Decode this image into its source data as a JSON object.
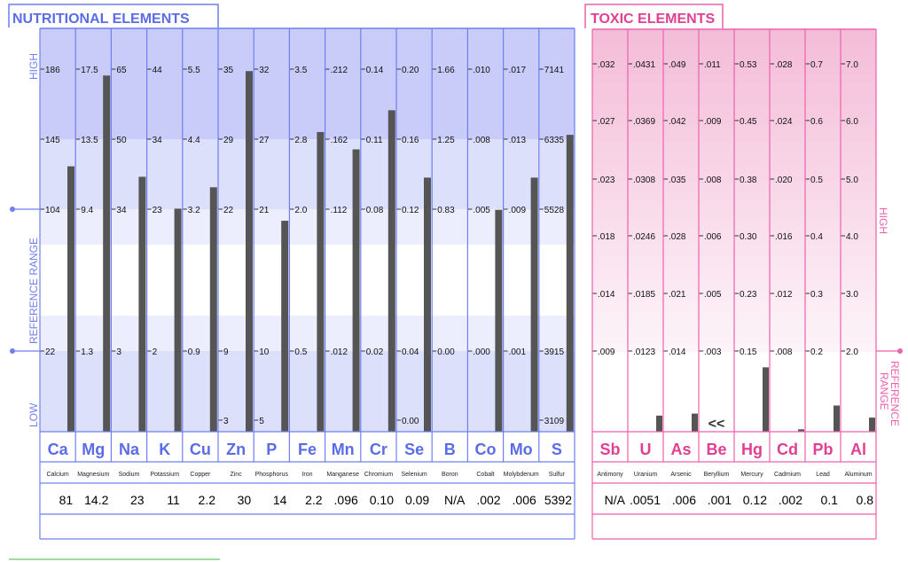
{
  "chart_data": [
    {
      "type": "bar",
      "title": "NUTRITIONAL ELEMENTS",
      "y_axis_labels": {
        "high": "HIGH",
        "reference": "REFERENCE   RANGE",
        "low": "LOW"
      },
      "grid": true,
      "columns": [
        {
          "symbol": "Ca",
          "name": "Calcium",
          "result": "81",
          "ticks": [
            "186",
            "145",
            "104",
            "22"
          ],
          "bottom_tick": "",
          "bar_level": 0.658
        },
        {
          "symbol": "Mg",
          "name": "Magnesium",
          "result": "14.2",
          "ticks": [
            "17.5",
            "13.5",
            "9.4",
            "1.3"
          ],
          "bottom_tick": "",
          "bar_level": 0.883
        },
        {
          "symbol": "Na",
          "name": "Sodium",
          "result": "23",
          "ticks": [
            "65",
            "50",
            "34",
            "3"
          ],
          "bottom_tick": "",
          "bar_level": 0.632
        },
        {
          "symbol": "K",
          "name": "Potassium",
          "result": "11",
          "ticks": [
            "44",
            "34",
            "23",
            "2"
          ],
          "bottom_tick": "",
          "bar_level": 0.553
        },
        {
          "symbol": "Cu",
          "name": "Copper",
          "result": "2.2",
          "ticks": [
            "5.5",
            "4.4",
            "3.2",
            "0.9"
          ],
          "bottom_tick": "",
          "bar_level": 0.606
        },
        {
          "symbol": "Zn",
          "name": "Zinc",
          "result": "30",
          "ticks": [
            "35",
            "29",
            "22",
            "9"
          ],
          "bottom_tick": "3",
          "bar_level": 0.894
        },
        {
          "symbol": "P",
          "name": "Phosphorus",
          "result": "14",
          "ticks": [
            "32",
            "27",
            "21",
            "10"
          ],
          "bottom_tick": "5",
          "bar_level": 0.523
        },
        {
          "symbol": "Fe",
          "name": "Iron",
          "result": "2.2",
          "ticks": [
            "3.5",
            "2.8",
            "2.0",
            "0.5"
          ],
          "bottom_tick": "",
          "bar_level": 0.743
        },
        {
          "symbol": "Mn",
          "name": "Manganese",
          "result": ".096",
          "ticks": [
            ".212",
            ".162",
            ".112",
            ".012"
          ],
          "bottom_tick": "",
          "bar_level": 0.7
        },
        {
          "symbol": "Cr",
          "name": "Chromium",
          "result": "0.10",
          "ticks": [
            "0.14",
            "0.11",
            "0.08",
            "0.02"
          ],
          "bottom_tick": "",
          "bar_level": 0.797
        },
        {
          "symbol": "Se",
          "name": "Selenium",
          "result": "0.09",
          "ticks": [
            "0.20",
            "0.16",
            "0.12",
            "0.04"
          ],
          "bottom_tick": "0.00",
          "bar_level": 0.63
        },
        {
          "symbol": "B",
          "name": "Boron",
          "result": "N/A",
          "ticks": [
            "1.66",
            "1.25",
            "0.83",
            "0.00"
          ],
          "bottom_tick": "",
          "bar_level": 0
        },
        {
          "symbol": "Co",
          "name": "Cobalt",
          "result": ".002",
          "ticks": [
            ".010",
            ".008",
            ".005",
            ".000"
          ],
          "bottom_tick": "",
          "bar_level": 0.55
        },
        {
          "symbol": "Mo",
          "name": "Molybdenum",
          "result": ".006",
          "ticks": [
            ".017",
            ".013",
            ".009",
            ".001"
          ],
          "bottom_tick": "",
          "bar_level": 0.63
        },
        {
          "symbol": "S",
          "name": "Sulfur",
          "result": "5392",
          "ticks": [
            "7141",
            "6335",
            "5528",
            "3915"
          ],
          "bottom_tick": "3109",
          "bar_level": 0.736
        }
      ]
    },
    {
      "type": "bar",
      "title": "TOXIC ELEMENTS",
      "y_axis_labels": {
        "high": "HIGH",
        "reference": "REFERENCE RANGE"
      },
      "grid": true,
      "columns": [
        {
          "symbol": "Sb",
          "name": "Antimony",
          "result": "N/A",
          "ticks": [
            ".032",
            ".027",
            ".023",
            ".018",
            ".014",
            ".009"
          ],
          "bar_level": 0,
          "marker": ""
        },
        {
          "symbol": "U",
          "name": "Uranium",
          "result": ".0051",
          "ticks": [
            ".0431",
            ".0369",
            ".0308",
            ".0246",
            ".0185",
            ".0123"
          ],
          "bar_level": 0.04,
          "marker": ""
        },
        {
          "symbol": "As",
          "name": "Arsenic",
          "result": ".006",
          "ticks": [
            ".049",
            ".042",
            ".035",
            ".028",
            ".021",
            ".014"
          ],
          "bar_level": 0.045,
          "marker": ""
        },
        {
          "symbol": "Be",
          "name": "Beryllium",
          "result": ".001",
          "ticks": [
            ".011",
            ".009",
            ".008",
            ".006",
            ".005",
            ".003"
          ],
          "bar_level": 0,
          "marker": "<<"
        },
        {
          "symbol": "Hg",
          "name": "Mercury",
          "result": "0.12",
          "ticks": [
            "0.53",
            "0.45",
            "0.38",
            "0.30",
            "0.23",
            "0.15"
          ],
          "bar_level": 0.16,
          "marker": ""
        },
        {
          "symbol": "Cd",
          "name": "Cadmium",
          "result": ".002",
          "ticks": [
            ".028",
            ".024",
            ".020",
            ".016",
            ".012",
            ".008"
          ],
          "bar_level": 0.006,
          "marker": ""
        },
        {
          "symbol": "Pb",
          "name": "Lead",
          "result": "0.1",
          "ticks": [
            "0.7",
            "0.6",
            "0.5",
            "0.4",
            "0.3",
            "0.2"
          ],
          "bar_level": 0.065,
          "marker": ""
        },
        {
          "symbol": "Al",
          "name": "Aluminum",
          "result": "0.8",
          "ticks": [
            "7.0",
            "6.0",
            "5.0",
            "4.0",
            "3.0",
            "2.0"
          ],
          "bar_level": 0.035,
          "marker": ""
        }
      ]
    }
  ],
  "colors": {
    "nutri_border": "#6f7ff0",
    "nutri_title": "#5a6ce8",
    "nutri_high": "#c9ccf8",
    "nutri_mid": "#dde0fb",
    "nutri_ref": "#ffffff",
    "tox_border": "#ec62ac",
    "tox_title": "#e0408f",
    "tox_top": "#f4bcd8",
    "tox_bottom": "#fdf4f9",
    "bar": "#555555",
    "footer_line": "#7fd07f"
  }
}
